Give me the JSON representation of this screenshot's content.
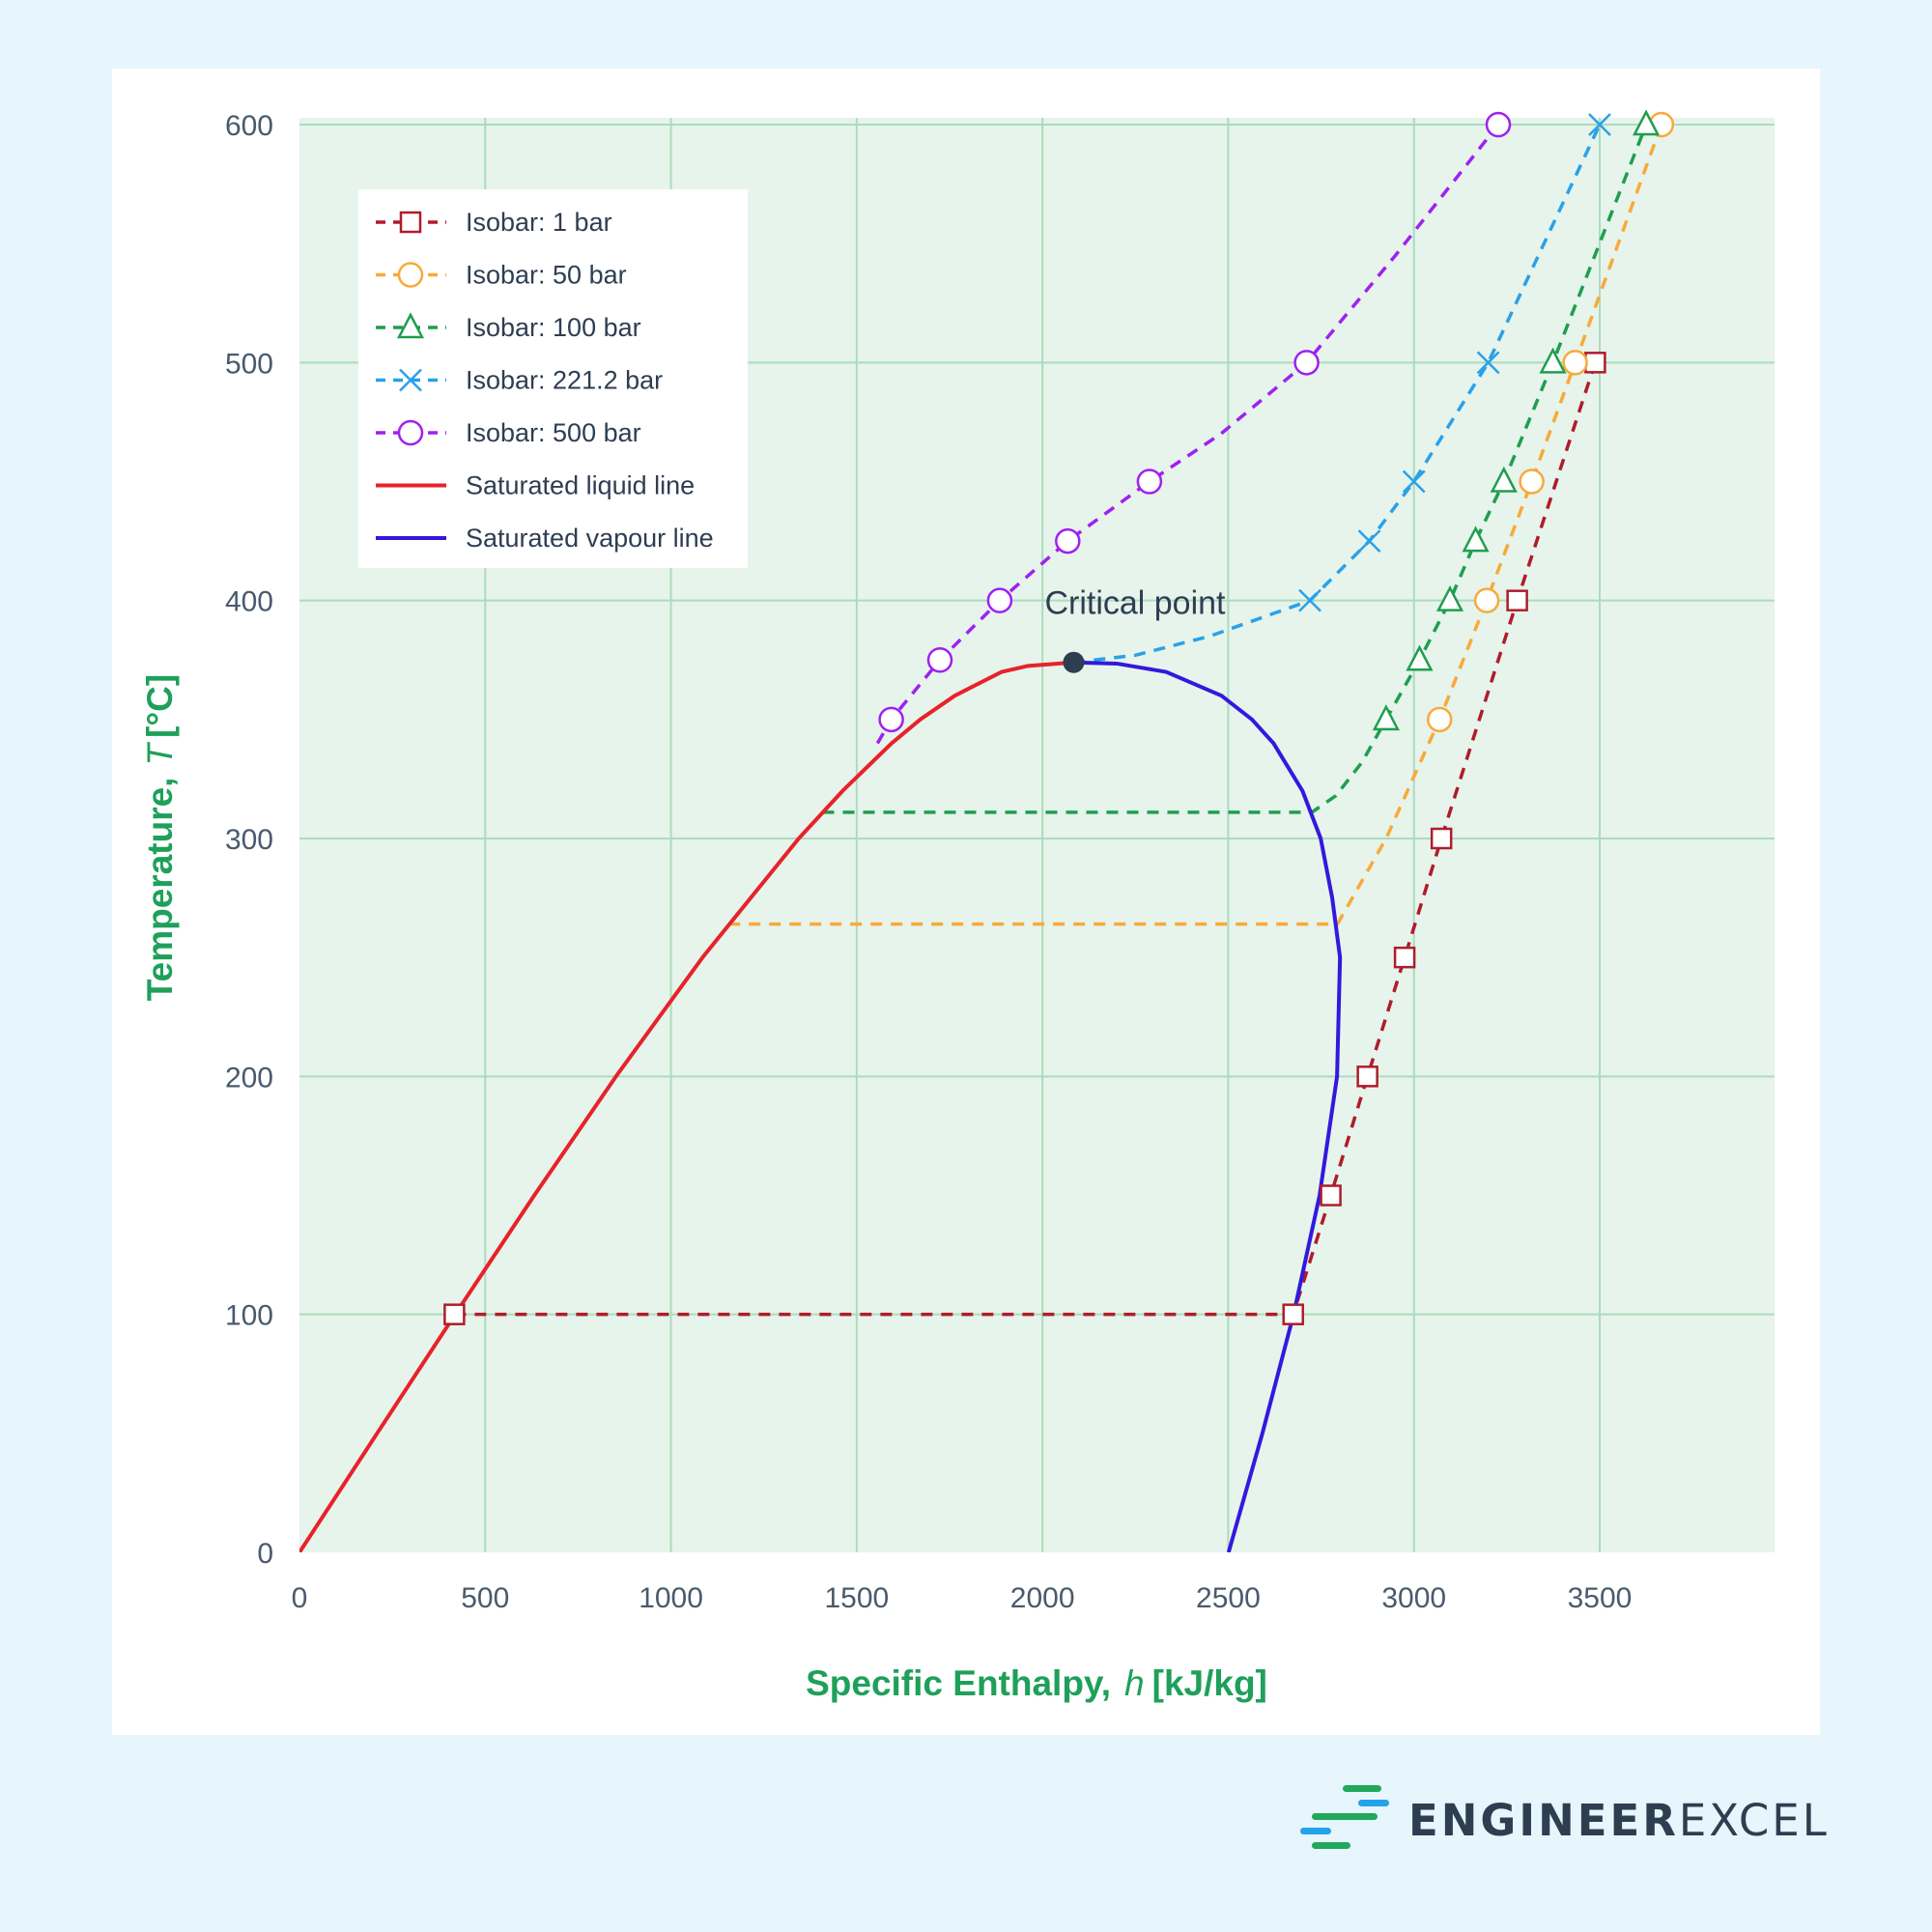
{
  "chart_data": {
    "type": "line",
    "xlabel": "Specific Enthalpy,",
    "xlabel_symbol": "h",
    "xlabel_unit": "[kJ/kg]",
    "ylabel": "Temperature,",
    "ylabel_symbol": "T",
    "ylabel_unit": "[°C]",
    "xlim": [
      0,
      3970
    ],
    "ylim": [
      0,
      603
    ],
    "xticks": [
      "0",
      "500",
      "1000",
      "1500",
      "2000",
      "2500",
      "3000",
      "3500"
    ],
    "yticks": [
      "0",
      "100",
      "200",
      "300",
      "400",
      "500",
      "600"
    ],
    "grid": true,
    "legend_position": "top-left",
    "annotation": {
      "text": "Critical point",
      "x": 2084,
      "y": 374,
      "color": "#2d3e50"
    },
    "series": [
      {
        "name": "Isobar: 1 bar",
        "style": "dashed",
        "marker": "square",
        "color": "#b01c2a",
        "line": [
          [
            417,
            100
          ],
          [
            2675,
            100
          ],
          [
            2776,
            150
          ],
          [
            2875,
            200
          ],
          [
            2975,
            250
          ],
          [
            3074,
            300
          ],
          [
            3278,
            400
          ],
          [
            3488,
            500
          ]
        ],
        "markers": [
          [
            417,
            100
          ],
          [
            2675,
            100
          ],
          [
            2776,
            150
          ],
          [
            2875,
            200
          ],
          [
            2975,
            250
          ],
          [
            3074,
            300
          ],
          [
            3278,
            400
          ],
          [
            3488,
            500
          ]
        ]
      },
      {
        "name": "Isobar: 50 bar",
        "style": "dashed",
        "marker": "circle",
        "color": "#f9a93a",
        "line": [
          [
            1155,
            264
          ],
          [
            2794,
            264
          ],
          [
            2925,
            300
          ],
          [
            3069,
            350
          ],
          [
            3196,
            400
          ],
          [
            3317,
            450
          ],
          [
            3434,
            500
          ],
          [
            3666,
            600
          ]
        ],
        "markers": [
          [
            3069,
            350
          ],
          [
            3196,
            400
          ],
          [
            3317,
            450
          ],
          [
            3434,
            500
          ],
          [
            3666,
            600
          ]
        ]
      },
      {
        "name": "Isobar: 100 bar",
        "style": "dashed",
        "marker": "triangle",
        "color": "#1f9e4f",
        "line": [
          [
            1408,
            311
          ],
          [
            2725,
            311
          ],
          [
            2790,
            318
          ],
          [
            2860,
            332
          ],
          [
            2925,
            350
          ],
          [
            3015,
            375
          ],
          [
            3097,
            400
          ],
          [
            3166,
            425
          ],
          [
            3242,
            450
          ],
          [
            3374,
            500
          ],
          [
            3625,
            600
          ]
        ],
        "markers": [
          [
            2925,
            350
          ],
          [
            3015,
            375
          ],
          [
            3097,
            400
          ],
          [
            3166,
            425
          ],
          [
            3242,
            450
          ],
          [
            3374,
            500
          ],
          [
            3625,
            600
          ]
        ]
      },
      {
        "name": "Isobar: 221.2 bar",
        "style": "dashed",
        "marker": "x",
        "color": "#2aa1e8",
        "line": [
          [
            2084,
            374
          ],
          [
            2250,
            377
          ],
          [
            2450,
            385
          ],
          [
            2720,
            400
          ],
          [
            2880,
            425
          ],
          [
            3000,
            450
          ],
          [
            3200,
            500
          ],
          [
            3500,
            600
          ]
        ],
        "markers": [
          [
            2720,
            400
          ],
          [
            2880,
            425
          ],
          [
            3000,
            450
          ],
          [
            3200,
            500
          ],
          [
            3500,
            600
          ]
        ]
      },
      {
        "name": "Isobar: 500 bar",
        "style": "dashed",
        "marker": "circle",
        "color": "#a020f0",
        "line": [
          [
            1556,
            340
          ],
          [
            1593,
            350
          ],
          [
            1724,
            375
          ],
          [
            1885,
            400
          ],
          [
            2068,
            425
          ],
          [
            2288,
            450
          ],
          [
            2480,
            470
          ],
          [
            2711,
            500
          ],
          [
            2950,
            545
          ],
          [
            3227,
            600
          ]
        ],
        "markers": [
          [
            1593,
            350
          ],
          [
            1724,
            375
          ],
          [
            1885,
            400
          ],
          [
            2068,
            425
          ],
          [
            2288,
            450
          ],
          [
            2711,
            500
          ],
          [
            3227,
            600
          ]
        ]
      },
      {
        "name": "Saturated liquid line",
        "style": "solid",
        "marker": "none",
        "color": "#e8222a",
        "line": [
          [
            0,
            0
          ],
          [
            209,
            50
          ],
          [
            419,
            100
          ],
          [
            632,
            150
          ],
          [
            852,
            200
          ],
          [
            1085,
            250
          ],
          [
            1344,
            300
          ],
          [
            1462,
            320
          ],
          [
            1594,
            340
          ],
          [
            1671,
            350
          ],
          [
            1764,
            360
          ],
          [
            1890,
            370
          ],
          [
            1960,
            372.5
          ],
          [
            2084,
            374
          ]
        ]
      },
      {
        "name": "Saturated vapour line",
        "style": "solid",
        "marker": "none",
        "color": "#3318dd",
        "line": [
          [
            2084,
            374
          ],
          [
            2200,
            373.5
          ],
          [
            2333,
            370
          ],
          [
            2482,
            360
          ],
          [
            2564,
            350
          ],
          [
            2622,
            340
          ],
          [
            2700,
            320
          ],
          [
            2749,
            300
          ],
          [
            2780,
            275
          ],
          [
            2801,
            250
          ],
          [
            2793,
            200
          ],
          [
            2746,
            150
          ],
          [
            2676,
            100
          ],
          [
            2592,
            50
          ],
          [
            2501,
            0
          ]
        ]
      }
    ]
  },
  "logo": {
    "text_bold": "ENGINEER",
    "text_light": "EXCEL",
    "bar_green": "#22a85a",
    "bar_blue": "#22a3ea"
  },
  "colors": {
    "background": "#e7f5fc",
    "plot_bg": "#e6f4ec",
    "grid": "#acdcbc",
    "axis_title": "#1fa05a",
    "tick": "#4a5a6e",
    "critical_point": "#2d3e50"
  }
}
